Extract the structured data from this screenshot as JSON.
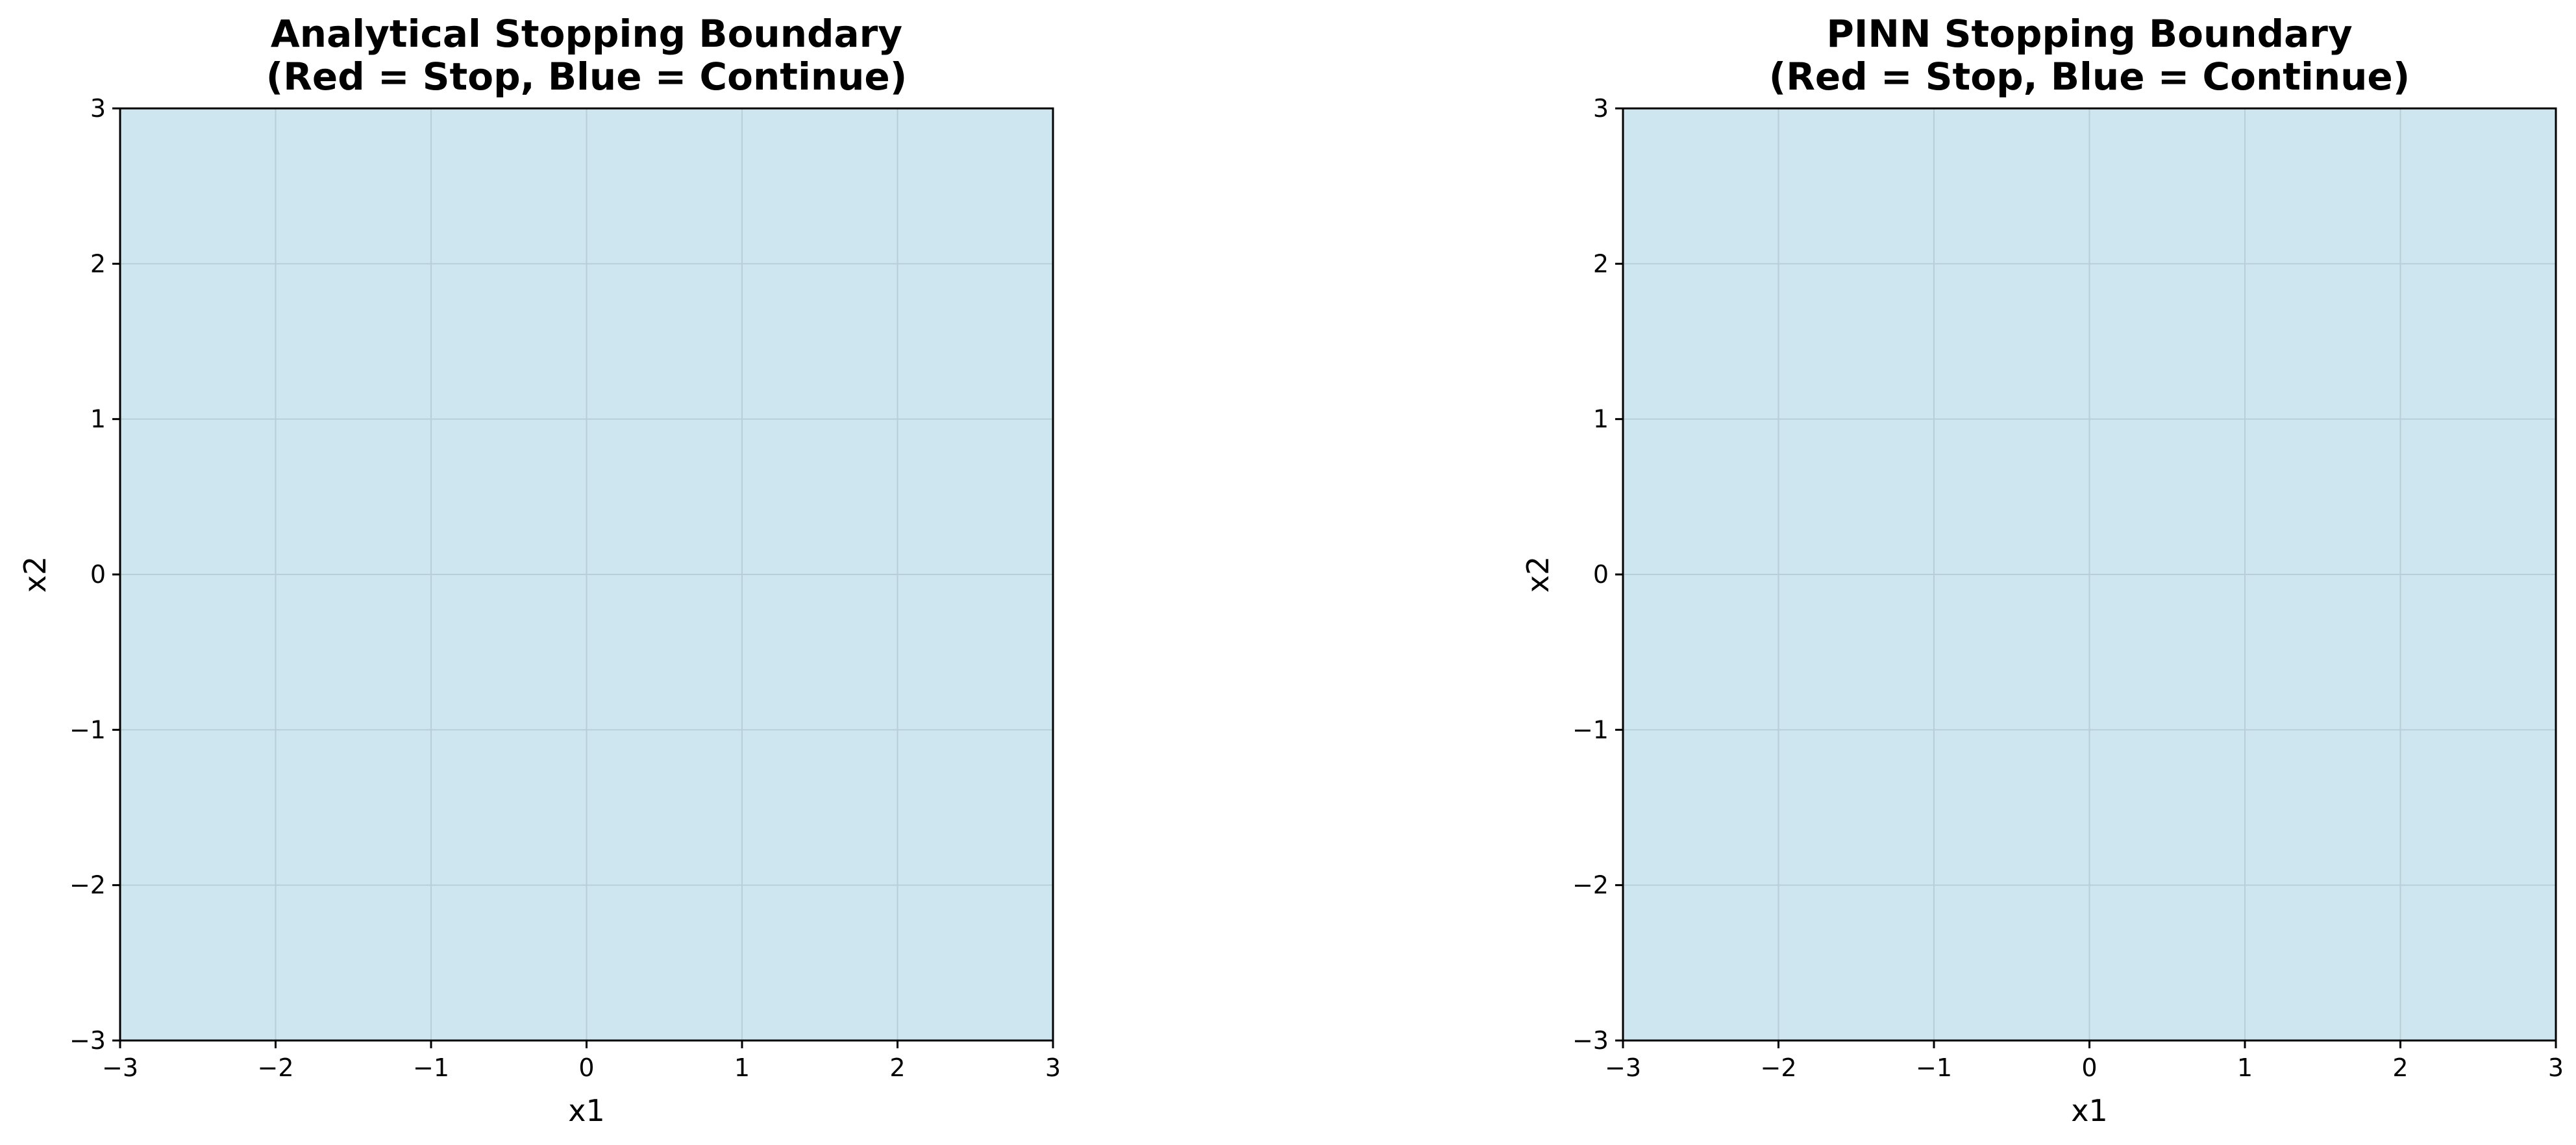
{
  "figure": {
    "background": "#ffffff"
  },
  "chart_data": [
    {
      "type": "heatmap",
      "title": "Analytical Stopping Boundary",
      "subtitle": "(Red = Stop, Blue = Continue)",
      "xlabel": "x1",
      "ylabel": "x2",
      "xlim": [
        -3,
        3
      ],
      "ylim": [
        -3,
        3
      ],
      "xticks": [
        -3,
        -2,
        -1,
        0,
        1,
        2,
        3
      ],
      "yticks": [
        -3,
        -2,
        -1,
        0,
        1,
        2,
        3
      ],
      "xtick_labels": [
        "−3",
        "−2",
        "−1",
        "0",
        "1",
        "2",
        "3"
      ],
      "ytick_labels": [
        "−3",
        "−2",
        "−1",
        "0",
        "1",
        "2",
        "3"
      ],
      "grid": true,
      "regions": [
        {
          "label": "Continue",
          "x": [
            -3,
            3
          ],
          "y": [
            -3,
            3
          ],
          "color": "#cde6ef"
        }
      ],
      "colors": {
        "stop": "#f4b9b9",
        "continue": "#cde6ef",
        "grid": "#b9cfd6"
      }
    },
    {
      "type": "heatmap",
      "title": "PINN Stopping Boundary",
      "subtitle": "(Red = Stop, Blue = Continue)",
      "xlabel": "x1",
      "ylabel": "x2",
      "xlim": [
        -3,
        3
      ],
      "ylim": [
        -3,
        3
      ],
      "xticks": [
        -3,
        -2,
        -1,
        0,
        1,
        2,
        3
      ],
      "yticks": [
        -3,
        -2,
        -1,
        0,
        1,
        2,
        3
      ],
      "xtick_labels": [
        "−3",
        "−2",
        "−1",
        "0",
        "1",
        "2",
        "3"
      ],
      "ytick_labels": [
        "−3",
        "−2",
        "−1",
        "0",
        "1",
        "2",
        "3"
      ],
      "grid": true,
      "regions": [
        {
          "label": "Continue",
          "x": [
            -3,
            3
          ],
          "y": [
            -3,
            3
          ],
          "color": "#cde6ef"
        }
      ],
      "colors": {
        "stop": "#f4b9b9",
        "continue": "#cde6ef",
        "grid": "#b9cfd6"
      }
    }
  ]
}
